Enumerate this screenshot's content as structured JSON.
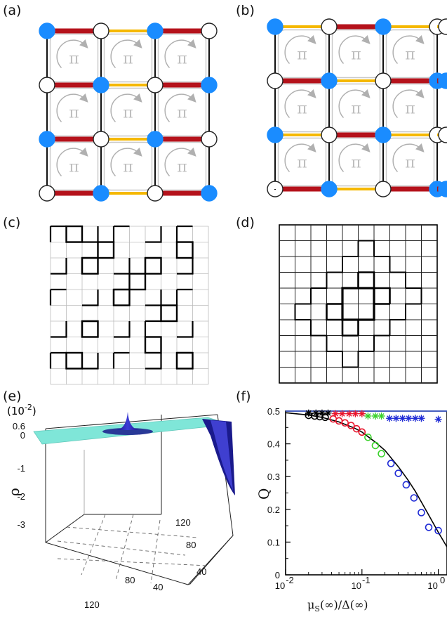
{
  "labels": {
    "a": "(a)",
    "b": "(b)",
    "c": "(c)",
    "d": "(d)",
    "e": "(e)",
    "f": "(f)"
  },
  "pi_symbol": "π",
  "colors": {
    "dimer_strong": "#b5121b",
    "dimer_weak": "#f5b800",
    "filled_site": "#1a8cff",
    "flux_arrow": "#b0b0b0",
    "surface": "#7fe6d8",
    "surface_dip": "#1a1a8c",
    "fit_line": "#000000",
    "ref_line": "#3b5bdb",
    "series_black": "#000000",
    "series_red": "#e8122a",
    "series_green": "#39d12a",
    "series_blue": "#1f2bd6"
  },
  "panel_e": {
    "exponent_label": "(10",
    "exponent_power": "-2",
    "exponent_close": ")",
    "zlabel": "ρ",
    "zticks": [
      "0.6",
      "0",
      "-1",
      "-2",
      "-3"
    ],
    "depth_ticks": [
      "120",
      "80",
      "40"
    ],
    "front_ticks": [
      "40",
      "80",
      "120"
    ]
  },
  "chart_data": {
    "type": "scatter",
    "xscale": "log",
    "xlim": [
      0.01,
      1.3
    ],
    "ylim": [
      0,
      0.5
    ],
    "xlabel_main": "μ",
    "xlabel_sub": "S",
    "xlabel_rest": "(∞)/Δ(∞)",
    "ylabel": "Q",
    "xtick_labels": [
      "10",
      "10",
      "10"
    ],
    "xtick_powers": [
      "-2",
      "-1",
      "0"
    ],
    "ytick_labels": [
      "0",
      "0.1",
      "0.2",
      "0.3",
      "0.4",
      "0.5"
    ],
    "ref_line_y": 0.5,
    "series": [
      {
        "marker": "star",
        "color": "#000000",
        "x": [
          0.02,
          0.025,
          0.03,
          0.036
        ],
        "y": [
          0.494,
          0.494,
          0.494,
          0.494
        ]
      },
      {
        "marker": "star",
        "color": "#e8122a",
        "x": [
          0.045,
          0.055,
          0.068,
          0.082,
          0.1
        ],
        "y": [
          0.492,
          0.492,
          0.492,
          0.492,
          0.492
        ]
      },
      {
        "marker": "star",
        "color": "#39d12a",
        "x": [
          0.12,
          0.15,
          0.18
        ],
        "y": [
          0.485,
          0.485,
          0.485
        ]
      },
      {
        "marker": "star",
        "color": "#1f2bd6",
        "x": [
          0.23,
          0.28,
          0.34,
          0.41,
          0.5,
          0.6,
          1.0
        ],
        "y": [
          0.478,
          0.478,
          0.478,
          0.478,
          0.478,
          0.478,
          0.475
        ]
      },
      {
        "marker": "circle",
        "color": "#000000",
        "x": [
          0.02,
          0.024,
          0.028,
          0.033
        ],
        "y": [
          0.487,
          0.485,
          0.483,
          0.481
        ]
      },
      {
        "marker": "circle",
        "color": "#e8122a",
        "x": [
          0.042,
          0.05,
          0.06,
          0.072,
          0.085,
          0.1
        ],
        "y": [
          0.476,
          0.47,
          0.464,
          0.456,
          0.446,
          0.436
        ]
      },
      {
        "marker": "circle",
        "color": "#39d12a",
        "x": [
          0.12,
          0.15,
          0.18
        ],
        "y": [
          0.42,
          0.395,
          0.37
        ]
      },
      {
        "marker": "circle",
        "color": "#1f2bd6",
        "x": [
          0.24,
          0.3,
          0.38,
          0.48,
          0.6,
          0.75,
          1.0
        ],
        "y": [
          0.34,
          0.31,
          0.275,
          0.235,
          0.19,
          0.145,
          0.135
        ]
      }
    ],
    "fit_curve": {
      "x": [
        0.01,
        0.02,
        0.03,
        0.05,
        0.08,
        0.1,
        0.15,
        0.2,
        0.3,
        0.4,
        0.5,
        0.7,
        1.0,
        1.3
      ],
      "y": [
        0.495,
        0.488,
        0.481,
        0.467,
        0.448,
        0.436,
        0.405,
        0.38,
        0.33,
        0.29,
        0.255,
        0.195,
        0.13,
        0.085
      ]
    }
  }
}
